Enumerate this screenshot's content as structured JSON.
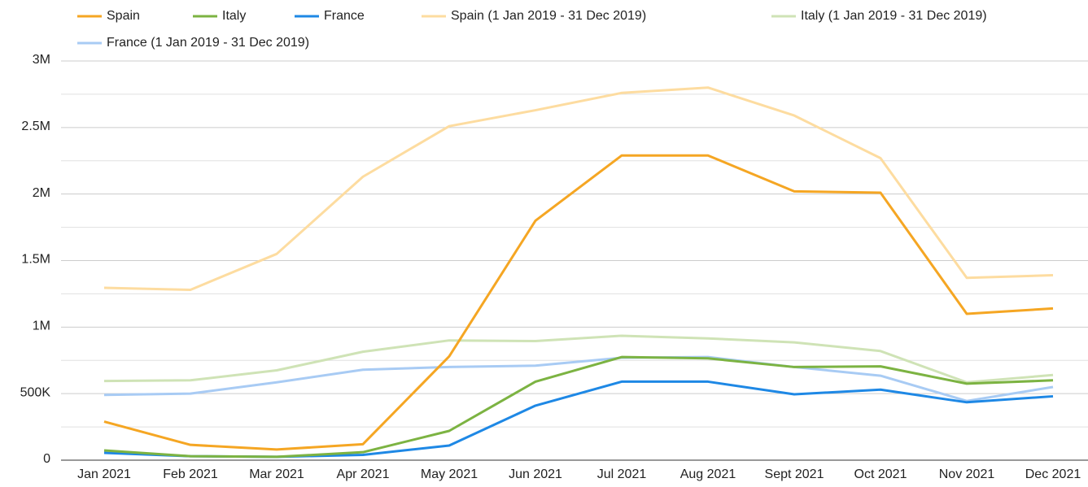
{
  "chart_data": {
    "type": "line",
    "categories": [
      "Jan 2021",
      "Feb 2021",
      "Mar 2021",
      "Apr 2021",
      "May 2021",
      "Jun 2021",
      "Jul 2021",
      "Aug 2021",
      "Sept 2021",
      "Oct 2021",
      "Nov 2021",
      "Dec 2021"
    ],
    "series": [
      {
        "name": "Spain",
        "color": "#f5a623",
        "values": [
          290000,
          115000,
          80000,
          120000,
          780000,
          1800000,
          2290000,
          2290000,
          2020000,
          2010000,
          1100000,
          1140000
        ]
      },
      {
        "name": "Italy",
        "color": "#7cb342",
        "values": [
          73000,
          30000,
          25000,
          60000,
          220000,
          590000,
          775000,
          765000,
          700000,
          705000,
          575000,
          600000
        ]
      },
      {
        "name": "France",
        "color": "#1e88e5",
        "values": [
          55000,
          30000,
          25000,
          40000,
          110000,
          410000,
          590000,
          590000,
          495000,
          530000,
          435000,
          480000
        ]
      },
      {
        "name": "Spain (1 Jan 2019 - 31 Dec 2019)",
        "color": "#fddca0",
        "values": [
          1295000,
          1280000,
          1550000,
          2130000,
          2510000,
          2630000,
          2760000,
          2800000,
          2590000,
          2270000,
          1370000,
          1390000
        ]
      },
      {
        "name": "Italy (1 Jan 2019 - 31 Dec 2019)",
        "color": "#cfe3b6",
        "values": [
          595000,
          600000,
          675000,
          815000,
          900000,
          895000,
          935000,
          915000,
          885000,
          820000,
          585000,
          640000
        ]
      },
      {
        "name": "France (1 Jan 2019 - 31 Dec 2019)",
        "color": "#a8cbf4",
        "values": [
          490000,
          500000,
          585000,
          680000,
          700000,
          710000,
          770000,
          775000,
          700000,
          635000,
          445000,
          550000
        ]
      }
    ],
    "ylim": [
      0,
      3000000
    ],
    "yticks": [
      0,
      {
        "value": 500000,
        "label": "500K"
      },
      {
        "value": 1000000,
        "label": "1M"
      },
      {
        "value": 1500000,
        "label": "1.5M"
      },
      {
        "value": 2000000,
        "label": "2M"
      },
      {
        "value": 2500000,
        "label": "2.5M"
      },
      {
        "value": 3000000,
        "label": "3M"
      }
    ],
    "grid": true,
    "minor_grid": true,
    "legend": "top"
  }
}
